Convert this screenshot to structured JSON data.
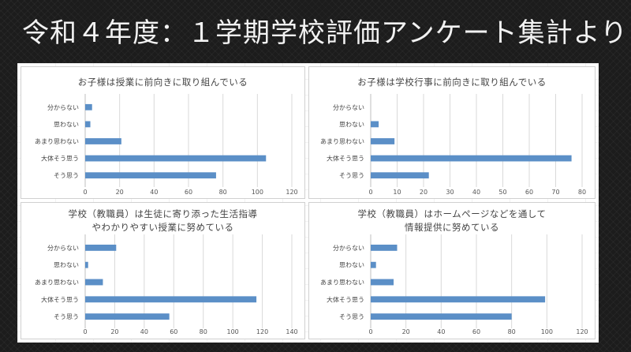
{
  "slide": {
    "title": "令和４年度：１学期学校評価アンケート集計より"
  },
  "chart_data": [
    {
      "type": "bar",
      "orientation": "horizontal",
      "title_lines": [
        "お子様は授業に前向きに取り組んでいる"
      ],
      "categories": [
        "分からない",
        "思わない",
        "あまり思わない",
        "大体そう思う",
        "そう思う"
      ],
      "values": [
        4,
        3,
        21,
        105,
        76
      ],
      "xlim": [
        0,
        120
      ],
      "xticks": [
        0,
        20,
        40,
        60,
        80,
        100,
        120
      ],
      "grid": true,
      "bar_color": "#5b8fc7"
    },
    {
      "type": "bar",
      "orientation": "horizontal",
      "title_lines": [
        "お子様は学校行事に前向きに取り組んでいる"
      ],
      "categories": [
        "分からない",
        "思わない",
        "あまり思わない",
        "大体そう思う",
        "そう思う"
      ],
      "values": [
        0,
        3,
        9,
        76,
        22
      ],
      "xlim": [
        0,
        80
      ],
      "xticks": [
        0,
        10,
        20,
        30,
        40,
        50,
        60,
        70,
        80
      ],
      "grid": true,
      "bar_color": "#5b8fc7"
    },
    {
      "type": "bar",
      "orientation": "horizontal",
      "title_lines": [
        "学校（教職員）は生徒に寄り添った生活指導",
        "やわかりやすい授業に努めている"
      ],
      "categories": [
        "分からない",
        "思わない",
        "あまり思わない",
        "大体そう思う",
        "そう思う"
      ],
      "values": [
        21,
        2,
        12,
        116,
        57
      ],
      "xlim": [
        0,
        140
      ],
      "xticks": [
        0,
        20,
        40,
        60,
        80,
        100,
        120,
        140
      ],
      "grid": true,
      "bar_color": "#5b8fc7"
    },
    {
      "type": "bar",
      "orientation": "horizontal",
      "title_lines": [
        "学校（教職員）はホームページなどを通して",
        "情報提供に努めている"
      ],
      "categories": [
        "分からない",
        "思わない",
        "あまり思わない",
        "大体そう思う",
        "そう思う"
      ],
      "values": [
        15,
        3,
        13,
        99,
        80
      ],
      "xlim": [
        0,
        120
      ],
      "xticks": [
        0,
        20,
        40,
        60,
        80,
        100,
        120
      ],
      "grid": true,
      "bar_color": "#5b8fc7"
    }
  ]
}
